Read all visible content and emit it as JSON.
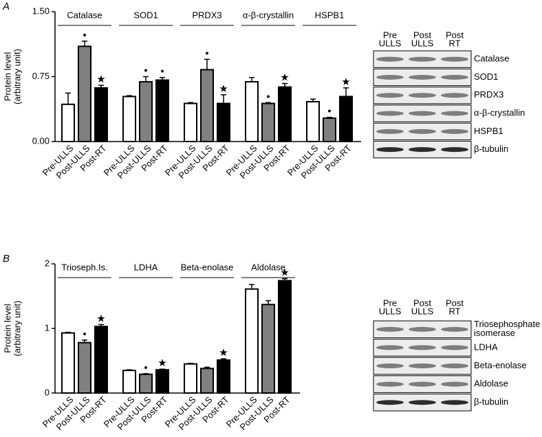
{
  "chart_data": [
    {
      "type": "bar",
      "panel": "A",
      "ylabel": [
        "Protein level",
        "(arbitrary  unit)"
      ],
      "ylim": [
        0,
        1.5
      ],
      "yticks": [
        {
          "value": 0,
          "label": "0.00"
        },
        {
          "value": 0.75,
          "label": "0.75"
        },
        {
          "value": 1.5,
          "label": "1.50"
        }
      ],
      "colors": [
        "#ffffff",
        "#808080",
        "#000000"
      ],
      "groups": [
        {
          "name": "Catalase",
          "categories": [
            "Pre-ULLS",
            "Post-ULLS",
            "Post-RT"
          ],
          "values": [
            0.43,
            1.1,
            0.62
          ],
          "errors": [
            0.13,
            0.06,
            0.03
          ],
          "markers": [
            null,
            "•",
            "★"
          ]
        },
        {
          "name": "SOD1",
          "categories": [
            "Pre-ULLS",
            "Post-ULLS",
            "Post-RT"
          ],
          "values": [
            0.52,
            0.69,
            0.71
          ],
          "errors": [
            0.01,
            0.06,
            0.03
          ],
          "markers": [
            null,
            "•",
            "•"
          ]
        },
        {
          "name": "PRDX3",
          "categories": [
            "Pre-ULLS",
            "Post-ULLS",
            "Post-RT"
          ],
          "values": [
            0.44,
            0.83,
            0.44
          ],
          "errors": [
            0.01,
            0.12,
            0.1
          ],
          "markers": [
            null,
            "•",
            "★"
          ]
        },
        {
          "name": "α-β-crystallin",
          "categories": [
            "Pre-ULLS",
            "Post-ULLS",
            "Post-RT"
          ],
          "values": [
            0.69,
            0.44,
            0.63
          ],
          "errors": [
            0.05,
            0.01,
            0.04
          ],
          "markers": [
            null,
            "•",
            "★"
          ]
        },
        {
          "name": "HSPB1",
          "categories": [
            "Pre-ULLS",
            "Post-ULLS",
            "Post-RT"
          ],
          "values": [
            0.46,
            0.27,
            0.52
          ],
          "errors": [
            0.03,
            0.01,
            0.1
          ],
          "markers": [
            null,
            "•",
            "★"
          ]
        }
      ],
      "blot": {
        "columns": [
          [
            "Pre",
            "ULLS"
          ],
          [
            "Post",
            "ULLS"
          ],
          [
            "Post",
            "RT"
          ]
        ],
        "rows": [
          [
            "Catalase"
          ],
          [
            "SOD1"
          ],
          [
            "PRDX3"
          ],
          [
            "α-β-crystallin"
          ],
          [
            "HSPB1"
          ],
          [
            "β-tubulin"
          ]
        ]
      }
    },
    {
      "type": "bar",
      "panel": "B",
      "ylabel": [
        "Protein level",
        "(arbitrary  unit)"
      ],
      "ylim": [
        0,
        2
      ],
      "yticks": [
        0,
        1,
        2
      ],
      "colors": [
        "#ffffff",
        "#808080",
        "#000000"
      ],
      "groups": [
        {
          "name": "Trioseph.Is.",
          "categories": [
            "Pre-ULLS",
            "Post-ULLS",
            "Post-RT"
          ],
          "values": [
            0.93,
            0.78,
            1.03
          ],
          "errors": [
            0.01,
            0.04,
            0.03
          ],
          "markers": [
            null,
            "•",
            "★"
          ]
        },
        {
          "name": "LDHA",
          "categories": [
            "Pre-ULLS",
            "Post-ULLS",
            "Post-RT"
          ],
          "values": [
            0.35,
            0.29,
            0.36
          ],
          "errors": [
            0.01,
            0.01,
            0.01
          ],
          "markers": [
            null,
            "•",
            "★"
          ]
        },
        {
          "name": "Beta-enolase",
          "categories": [
            "Pre-ULLS",
            "Post-ULLS",
            "Post-RT"
          ],
          "values": [
            0.45,
            0.38,
            0.51
          ],
          "errors": [
            0.01,
            0.02,
            0.02
          ],
          "markers": [
            null,
            null,
            "★"
          ]
        },
        {
          "name": "Aldolase",
          "categories": [
            "Pre-ULLS",
            "Post-ULLS",
            "Post-RT"
          ],
          "values": [
            1.61,
            1.37,
            1.74
          ],
          "errors": [
            0.07,
            0.06,
            0.03
          ],
          "markers": [
            null,
            null,
            "★"
          ]
        }
      ],
      "blot": {
        "columns": [
          [
            "Pre",
            "ULLS"
          ],
          [
            "Post",
            "ULLS"
          ],
          [
            "Post",
            "RT"
          ]
        ],
        "rows": [
          [
            "Triosephosphate",
            "isomerase"
          ],
          [
            "LDHA"
          ],
          [
            "Beta-enolase"
          ],
          [
            "Aldolase"
          ],
          [
            "β-tubulin"
          ]
        ]
      }
    }
  ]
}
